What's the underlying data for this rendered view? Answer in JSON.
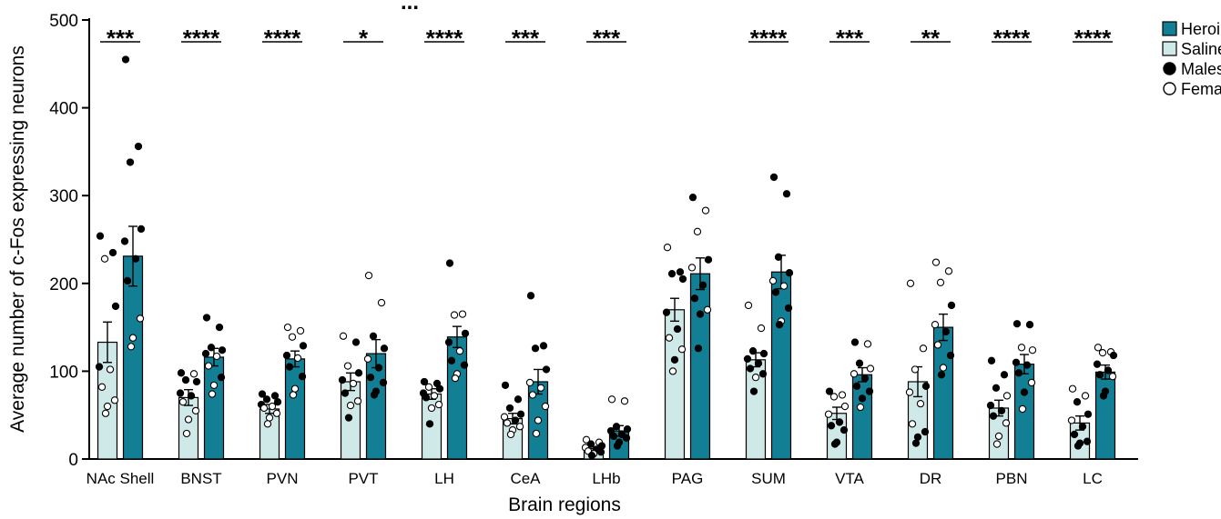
{
  "chart_data": {
    "type": "bar",
    "title": "...",
    "xlabel": "Brain regions",
    "ylabel": "Average number of c-Fos expressing neurons",
    "ylim": [
      0,
      500
    ],
    "yticks": [
      0,
      100,
      200,
      300,
      400,
      500
    ],
    "categories": [
      "NAc Shell",
      "BNST",
      "PVN",
      "PVT",
      "LH",
      "CeA",
      "LHb",
      "PAG",
      "SUM",
      "VTA",
      "DR",
      "PBN",
      "LC"
    ],
    "significance": [
      "***",
      "****",
      "****",
      "*",
      "****",
      "***",
      "***",
      "",
      "****",
      "***",
      "**",
      "****",
      "****"
    ],
    "series": [
      {
        "name": "Saline",
        "color": "#cfe8e8",
        "values": [
          133,
          70,
          57,
          88,
          74,
          46,
          12,
          170,
          113,
          52,
          88,
          58,
          41
        ],
        "sem": [
          23,
          9,
          5,
          10,
          6,
          6,
          2,
          13,
          8,
          7,
          17,
          9,
          8
        ],
        "points": [
          {
            "v": [
              254,
              235,
              228,
              174,
              105,
              102,
              82,
              67,
              60,
              52
            ],
            "m": [
              1,
              1,
              0,
              1,
              1,
              0,
              0,
              0,
              0,
              0
            ]
          },
          {
            "v": [
              98,
              97,
              90,
              88,
              75,
              72,
              65,
              55,
              45,
              29
            ],
            "m": [
              1,
              0,
              1,
              1,
              1,
              1,
              0,
              0,
              0,
              0
            ]
          },
          {
            "v": [
              74,
              72,
              68,
              65,
              62,
              60,
              58,
              52,
              47,
              40
            ],
            "m": [
              1,
              1,
              1,
              1,
              1,
              0,
              0,
              0,
              0,
              0
            ]
          },
          {
            "v": [
              140,
              133,
              106,
              98,
              90,
              86,
              75,
              66,
              61,
              47
            ],
            "m": [
              0,
              1,
              0,
              1,
              1,
              0,
              1,
              0,
              0,
              1
            ]
          },
          {
            "v": [
              88,
              86,
              82,
              80,
              75,
              72,
              70,
              62,
              58,
              40
            ],
            "m": [
              1,
              1,
              0,
              1,
              1,
              0,
              1,
              0,
              0,
              1
            ]
          },
          {
            "v": [
              84,
              68,
              58,
              51,
              48,
              44,
              41,
              37,
              33,
              28
            ],
            "m": [
              1,
              1,
              1,
              1,
              0,
              1,
              0,
              0,
              0,
              0
            ]
          },
          {
            "v": [
              22,
              19,
              17,
              15,
              13,
              11,
              9,
              8,
              6,
              4
            ],
            "m": [
              0,
              0,
              1,
              1,
              0,
              1,
              0,
              1,
              0,
              1
            ]
          },
          {
            "v": [
              241,
              213,
              211,
              205,
              167,
              148,
              138,
              125,
              113,
              100
            ],
            "m": [
              0,
              1,
              1,
              1,
              1,
              1,
              0,
              0,
              1,
              0
            ]
          },
          {
            "v": [
              175,
              149,
              123,
              120,
              114,
              109,
              103,
              97,
              93,
              77
            ],
            "m": [
              0,
              0,
              1,
              1,
              1,
              1,
              1,
              1,
              0,
              1
            ]
          },
          {
            "v": [
              77,
              73,
              71,
              60,
              51,
              42,
              38,
              33,
              19,
              17
            ],
            "m": [
              1,
              0,
              0,
              0,
              0,
              1,
              1,
              1,
              1,
              1
            ]
          },
          {
            "v": [
              200,
              126,
              102,
              83,
              76,
              63,
              40,
              31,
              25,
              18
            ],
            "m": [
              0,
              0,
              0,
              1,
              0,
              0,
              0,
              1,
              1,
              1
            ]
          },
          {
            "v": [
              112,
              96,
              81,
              72,
              61,
              55,
              49,
              41,
              26,
              17
            ],
            "m": [
              1,
              1,
              1,
              0,
              1,
              1,
              1,
              0,
              0,
              0
            ]
          },
          {
            "v": [
              80,
              72,
              65,
              51,
              44,
              37,
              28,
              20,
              18,
              15
            ],
            "m": [
              0,
              0,
              1,
              1,
              0,
              1,
              1,
              1,
              1,
              1
            ]
          }
        ]
      },
      {
        "name": "Heroin",
        "color": "#137f94",
        "values": [
          231,
          116,
          114,
          120,
          139,
          88,
          32,
          211,
          213,
          96,
          150,
          108,
          99
        ],
        "sem": [
          34,
          10,
          9,
          16,
          12,
          14,
          6,
          18,
          19,
          8,
          15,
          11,
          8
        ],
        "points": [
          {
            "v": [
              455,
              356,
              338,
              262,
              248,
              228,
              203,
              160,
              138,
              128
            ],
            "m": [
              1,
              1,
              1,
              1,
              1,
              1,
              1,
              0,
              0,
              0
            ]
          },
          {
            "v": [
              161,
              150,
              127,
              124,
              120,
              117,
              106,
              93,
              84,
              74
            ],
            "m": [
              1,
              1,
              1,
              1,
              1,
              0,
              0,
              1,
              0,
              0
            ]
          },
          {
            "v": [
              150,
              146,
              139,
              129,
              118,
              115,
              105,
              94,
              80,
              73
            ],
            "m": [
              0,
              0,
              0,
              1,
              1,
              0,
              1,
              1,
              0,
              0
            ]
          },
          {
            "v": [
              209,
              178,
              140,
              126,
              114,
              104,
              93,
              87,
              77,
              73
            ],
            "m": [
              0,
              0,
              1,
              1,
              0,
              1,
              1,
              1,
              1,
              1
            ]
          },
          {
            "v": [
              223,
              165,
              164,
              143,
              133,
              123,
              112,
              107,
              97,
              92
            ],
            "m": [
              1,
              0,
              0,
              1,
              1,
              0,
              1,
              1,
              0,
              0
            ]
          },
          {
            "v": [
              186,
              129,
              126,
              102,
              87,
              81,
              73,
              60,
              44,
              29
            ],
            "m": [
              1,
              1,
              1,
              1,
              0,
              0,
              0,
              0,
              0,
              0
            ]
          },
          {
            "v": [
              68,
              66,
              37,
              34,
              32,
              28,
              26,
              24,
              19,
              15
            ],
            "m": [
              0,
              0,
              1,
              1,
              1,
              1,
              1,
              1,
              1,
              1
            ]
          },
          {
            "v": [
              298,
              283,
              259,
              227,
              218,
              198,
              183,
              170,
              165,
              126
            ],
            "m": [
              1,
              0,
              0,
              1,
              0,
              1,
              1,
              0,
              1,
              1
            ]
          },
          {
            "v": [
              321,
              302,
              230,
              212,
              203,
              197,
              190,
              172,
              157,
              153
            ],
            "m": [
              1,
              1,
              1,
              1,
              0,
              0,
              1,
              1,
              0,
              1
            ]
          },
          {
            "v": [
              133,
              131,
              109,
              103,
              97,
              92,
              83,
              77,
              69,
              59
            ],
            "m": [
              1,
              0,
              1,
              0,
              0,
              1,
              1,
              1,
              1,
              0
            ]
          },
          {
            "v": [
              224,
              214,
              201,
              175,
              153,
              145,
              130,
              118,
              104,
              96
            ],
            "m": [
              0,
              0,
              0,
              1,
              0,
              1,
              0,
              1,
              0,
              1
            ]
          },
          {
            "v": [
              154,
              153,
              127,
              124,
              110,
              107,
              98,
              87,
              76,
              57
            ],
            "m": [
              1,
              1,
              0,
              0,
              1,
              1,
              1,
              0,
              1,
              0
            ]
          },
          {
            "v": [
              127,
              122,
              121,
              118,
              108,
              101,
              96,
              94,
              77,
              72
            ],
            "m": [
              0,
              0,
              0,
              1,
              1,
              1,
              1,
              0,
              1,
              1
            ]
          }
        ]
      }
    ],
    "legend": {
      "position": "top-right",
      "entries": [
        {
          "label": "Heroin",
          "swatch": "box",
          "color": "#137f94"
        },
        {
          "label": "Saline",
          "swatch": "box",
          "color": "#cfe8e8"
        },
        {
          "label": "Males",
          "swatch": "dot-filled"
        },
        {
          "label": "Females",
          "swatch": "dot-open"
        }
      ]
    },
    "grid": false
  }
}
